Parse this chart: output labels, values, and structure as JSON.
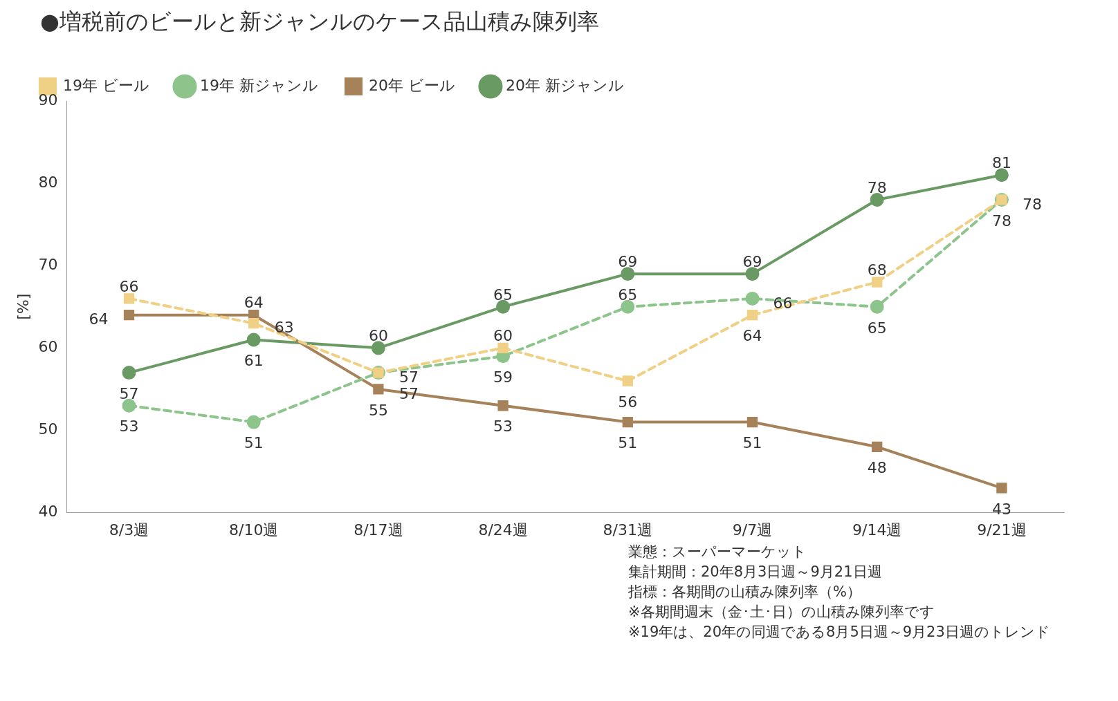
{
  "chart_data": {
    "type": "line",
    "title": "●増税前のビールと新ジャンルのケース品山積み陳列率",
    "ylabel": "[%]",
    "categories": [
      "8/3週",
      "8/10週",
      "8/17週",
      "8/24週",
      "8/31週",
      "9/7週",
      "9/14週",
      "9/21週"
    ],
    "series": [
      {
        "name": "19年 ビール",
        "color": "#f0d084",
        "values": [
          66,
          63,
          57,
          60,
          56,
          64,
          68,
          78
        ],
        "marker": "square",
        "line_style": "dashed"
      },
      {
        "name": "19年 新ジャンル",
        "color": "#8cc48c",
        "values": [
          53,
          51,
          57,
          59,
          65,
          66,
          65,
          78
        ],
        "marker": "circle",
        "line_style": "dashed"
      },
      {
        "name": "20年 ビール",
        "color": "#a6825a",
        "values": [
          64,
          64,
          55,
          53,
          51,
          51,
          48,
          43
        ],
        "marker": "square",
        "line_style": "solid"
      },
      {
        "name": "20年 新ジャンル",
        "color": "#6a9a64",
        "values": [
          57,
          61,
          60,
          65,
          69,
          69,
          78,
          81
        ],
        "marker": "circle",
        "line_style": "solid"
      }
    ],
    "ylim": [
      40,
      90
    ],
    "yticks": [
      40,
      50,
      60,
      70,
      80,
      90
    ],
    "grid": false,
    "legend": "top left",
    "data_labels": true,
    "annotations": [
      "業態：スーパーマーケット",
      "集計期間：20年8月3日週～9月21日週",
      "指標：各期間の山積み陳列率（%）",
      "※各期間週末（金･土･日）の山積み陳列率です",
      "※19年は、20年の同週である8月5日週～9月23日週のトレンド"
    ]
  }
}
